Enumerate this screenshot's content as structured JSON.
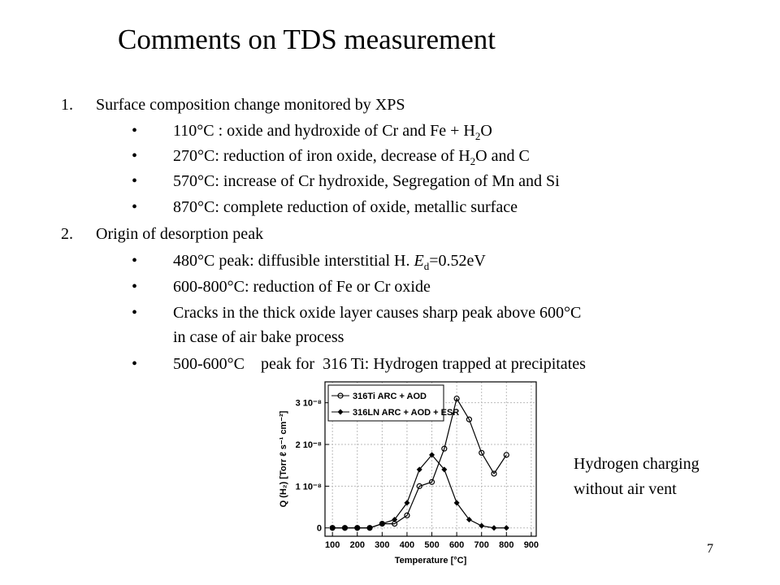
{
  "slide": {
    "title": "Comments on TDS measurement",
    "list": [
      {
        "number": "1.",
        "text": "Surface composition change monitored by XPS",
        "bullets": [
          [
            "110°C : oxide and hydroxide of Cr and Fe + H",
            "2",
            "O"
          ],
          [
            "270°C: reduction of iron oxide, decrease of H",
            "2",
            "O and C"
          ],
          "570°C: increase of Cr hydroxide, Segregation of Mn and Si",
          "870°C: complete reduction of oxide, metallic surface"
        ]
      },
      {
        "number": "2.",
        "text": "Origin of desorption peak",
        "bullets": [
          [
            "480°C peak: diffusible interstitial H. ",
            "E",
            "d",
            "=0.52eV"
          ],
          "600-800°C: reduction of Fe or Cr oxide",
          [
            "Cracks in the thick oxide layer causes sharp peak above 600°C",
            "in case of air bake process"
          ],
          "500-600°C    peak for  316 Ti: Hydrogen trapped at precipitates"
        ]
      }
    ],
    "note": [
      "Hydrogen charging",
      "without air vent"
    ],
    "page_number": "7"
  },
  "chart_data": {
    "type": "line",
    "xlabel": "Temperature [°C]",
    "ylabel": "Q (H₂) [Torr ℓ s⁻¹ cm⁻²]",
    "x": [
      100,
      150,
      200,
      250,
      300,
      350,
      400,
      450,
      500,
      550,
      600,
      650,
      700,
      750,
      800
    ],
    "series": [
      {
        "name": "316Ti ARC + AOD",
        "color": "#000000",
        "marker": "circle",
        "values": [
          0,
          0,
          0,
          0,
          1e-09,
          1e-09,
          3e-09,
          1e-08,
          1.1e-08,
          1.9e-08,
          3.1e-08,
          2.6e-08,
          1.8e-08,
          1.3e-08,
          1.75e-08
        ]
      },
      {
        "name": "316LN ARC + AOD + ESR",
        "color": "#000000",
        "marker": "diamond",
        "values": [
          0,
          0,
          0,
          0,
          1e-09,
          2e-09,
          6e-09,
          1.4e-08,
          1.75e-08,
          1.4e-08,
          6e-09,
          2e-09,
          5e-10,
          0,
          0
        ]
      }
    ],
    "xlim": [
      70,
      920
    ],
    "xticks": [
      100,
      200,
      300,
      400,
      500,
      600,
      700,
      800,
      900
    ],
    "ylim": [
      -2e-09,
      3.5e-08
    ],
    "yticks": [
      0,
      {
        "value": 1e-08,
        "label": "1 10⁻⁸"
      },
      {
        "value": 2e-08,
        "label": "2 10⁻⁸"
      },
      {
        "value": 3e-08,
        "label": "3 10⁻⁸"
      }
    ],
    "grid": true,
    "legend": "upper left"
  }
}
